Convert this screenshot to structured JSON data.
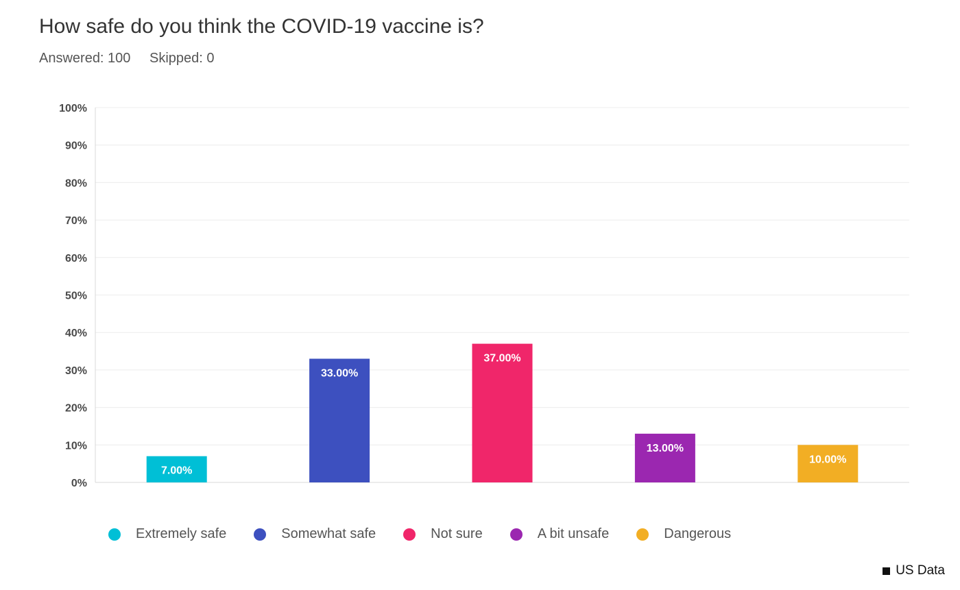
{
  "header": {
    "title": "How safe do you think the COVID-19 vaccine is?",
    "answered": "Answered: 100",
    "skipped": "Skipped: 0"
  },
  "footer": {
    "note": "US Data"
  },
  "chart_data": {
    "type": "bar",
    "title": "How safe do you think the COVID-19 vaccine is?",
    "xlabel": "",
    "ylabel": "",
    "ylim": [
      0,
      100
    ],
    "y_ticks": [
      "0%",
      "10%",
      "20%",
      "30%",
      "40%",
      "50%",
      "60%",
      "70%",
      "80%",
      "90%",
      "100%"
    ],
    "grid": true,
    "legend_position": "bottom",
    "categories": [
      "Extremely safe",
      "Somewhat safe",
      "Not sure",
      "A bit unsafe",
      "Dangerous"
    ],
    "values": [
      7,
      33,
      37,
      13,
      10
    ],
    "data_labels": [
      "7.00%",
      "33.00%",
      "37.00%",
      "13.00%",
      "10.00%"
    ],
    "colors": [
      "#00bfd6",
      "#3d50bf",
      "#f0266a",
      "#9b27b0",
      "#f2ae24"
    ]
  }
}
